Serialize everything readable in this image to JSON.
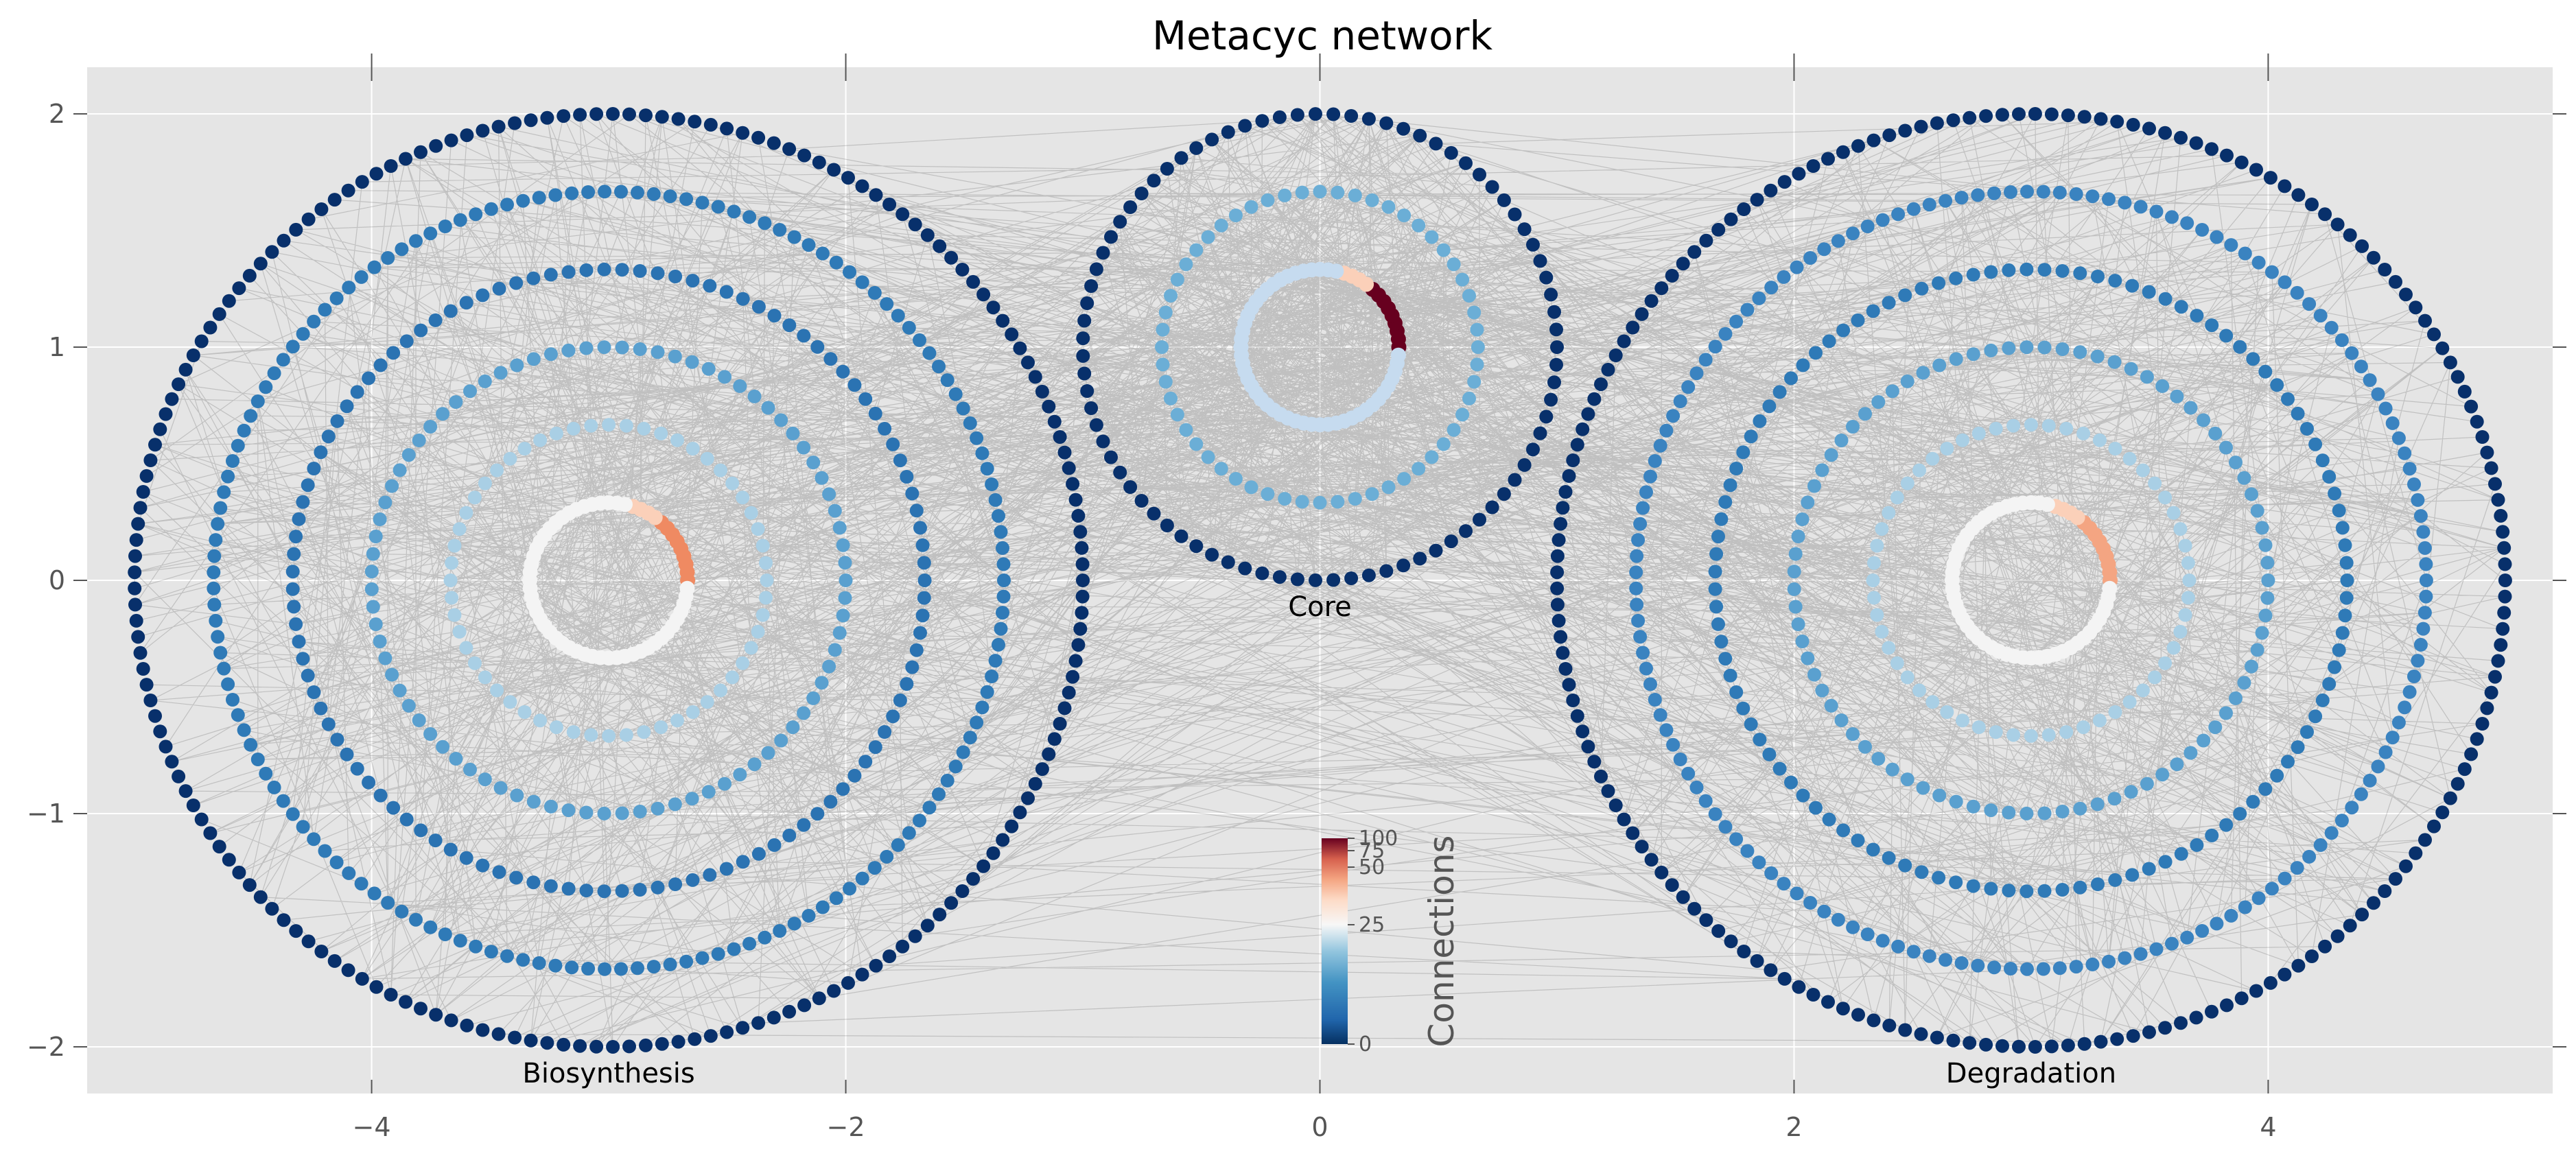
{
  "chart_data": {
    "type": "scatter",
    "title": "Metacyc network",
    "xlabel": "",
    "ylabel": "",
    "xlim": [
      -5.2,
      5.2
    ],
    "ylim": [
      -2.2,
      2.2
    ],
    "x_ticks": [
      -4,
      -2,
      0,
      2,
      4
    ],
    "x_tick_labels": [
      "−4",
      "−2",
      "0",
      "2",
      "4"
    ],
    "y_ticks": [
      -2,
      -1,
      0,
      1,
      2
    ],
    "y_tick_labels": [
      "−2",
      "−1",
      "0",
      "1",
      "2"
    ],
    "grid": true,
    "background": "#e5e5e5",
    "edge_color": "#000000",
    "colormap": "RdBu_r",
    "colorbar": {
      "label": "Connections",
      "ticks": [
        0,
        25,
        50,
        75,
        100
      ],
      "tick_labels": [
        "0",
        "25",
        "50",
        "75",
        "100"
      ]
    },
    "groups": [
      {
        "label": "Biosynthesis",
        "center": [
          -3,
          0
        ],
        "rings": [
          {
            "radius": 2.0,
            "color": "#08306b"
          },
          {
            "radius": 1.667,
            "color": "#2f7ab7"
          },
          {
            "radius": 1.333,
            "color": "#2b73b2"
          },
          {
            "radius": 1.0,
            "color": "#5aa0cf"
          },
          {
            "radius": 0.667,
            "color": "#a9cfe5"
          },
          {
            "radius": 0.333,
            "color": "#f4f4f4",
            "hot_color": "#ef8a62"
          }
        ]
      },
      {
        "label": "Core",
        "center": [
          0,
          1
        ],
        "rings": [
          {
            "radius": 1.0,
            "color": "#08306b"
          },
          {
            "radius": 0.667,
            "color": "#6baed6"
          },
          {
            "radius": 0.333,
            "color": "#c6dbef",
            "hot_color": "#67001f"
          }
        ]
      },
      {
        "label": "Degradation",
        "center": [
          3,
          0
        ],
        "rings": [
          {
            "radius": 2.0,
            "color": "#08306b"
          },
          {
            "radius": 1.667,
            "color": "#3a83c0"
          },
          {
            "radius": 1.333,
            "color": "#2f7ab7"
          },
          {
            "radius": 1.0,
            "color": "#5aa0cf"
          },
          {
            "radius": 0.667,
            "color": "#a9cfe5"
          },
          {
            "radius": 0.333,
            "color": "#f4f4f4",
            "hot_color": "#f4a582"
          }
        ]
      }
    ]
  }
}
